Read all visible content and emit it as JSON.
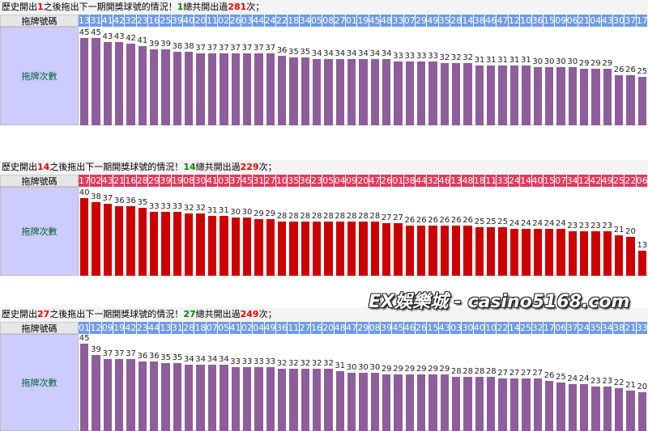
{
  "chart_data": [
    {
      "type": "bar",
      "header": [
        "歷史開出",
        "1",
        "之後拖出下一期開獎球號的情況！",
        "1",
        "總共開出過",
        "281",
        "次；"
      ],
      "row_labels": [
        "拖牌號碼",
        "拖牌次數"
      ],
      "cell_color": "#6f9be8",
      "color": "#8e5e9a",
      "categories": [
        "13",
        "31",
        "41",
        "42",
        "32",
        "23",
        "16",
        "25",
        "39",
        "40",
        "20",
        "11",
        "02",
        "26",
        "03",
        "44",
        "24",
        "22",
        "18",
        "34",
        "05",
        "08",
        "27",
        "01",
        "19",
        "45",
        "48",
        "33",
        "07",
        "29",
        "49",
        "35",
        "28",
        "14",
        "38",
        "46",
        "47",
        "12",
        "10",
        "36",
        "15",
        "09",
        "06",
        "21",
        "04",
        "43",
        "30",
        "37",
        "17"
      ],
      "values": [
        45,
        45,
        43,
        43,
        42,
        41,
        39,
        39,
        38,
        38,
        37,
        37,
        37,
        37,
        37,
        37,
        37,
        36,
        35,
        35,
        34,
        34,
        34,
        34,
        34,
        34,
        34,
        33,
        33,
        33,
        33,
        32,
        32,
        32,
        31,
        31,
        31,
        31,
        31,
        30,
        30,
        30,
        30,
        29,
        29,
        29,
        26,
        26,
        25
      ]
    },
    {
      "type": "bar",
      "header": [
        "歷史開出",
        "14",
        "之後拖出下一期開獎球號的情況！",
        "14",
        "總共開出過",
        "229",
        "次；"
      ],
      "row_labels": [
        "拖牌號碼",
        "拖牌次數"
      ],
      "cell_color": "#e33a5c",
      "color": "#cc0000",
      "categories": [
        "17",
        "02",
        "43",
        "21",
        "16",
        "28",
        "29",
        "39",
        "19",
        "08",
        "30",
        "41",
        "03",
        "37",
        "45",
        "31",
        "27",
        "10",
        "35",
        "36",
        "23",
        "05",
        "04",
        "09",
        "20",
        "47",
        "26",
        "01",
        "38",
        "44",
        "32",
        "46",
        "13",
        "48",
        "18",
        "11",
        "33",
        "24",
        "14",
        "40",
        "15",
        "07",
        "34",
        "12",
        "42",
        "49",
        "25",
        "22",
        "06"
      ],
      "values": [
        40,
        38,
        37,
        36,
        36,
        35,
        33,
        33,
        33,
        32,
        32,
        31,
        31,
        30,
        30,
        29,
        29,
        28,
        28,
        28,
        28,
        28,
        28,
        28,
        28,
        28,
        27,
        27,
        26,
        26,
        26,
        26,
        26,
        26,
        25,
        25,
        25,
        24,
        24,
        24,
        24,
        24,
        23,
        23,
        23,
        23,
        21,
        20,
        13
      ]
    },
    {
      "type": "bar",
      "header": [
        "歷史開出",
        "27",
        "之後拖出下一期開獎球號的情況！",
        "27",
        "總共開出過",
        "249",
        "次；"
      ],
      "row_labels": [
        "拖牌號碼",
        "拖牌次數"
      ],
      "cell_color": "#6f9be8",
      "color": "#8e5e9a",
      "categories": [
        "01",
        "12",
        "09",
        "19",
        "42",
        "23",
        "44",
        "13",
        "31",
        "28",
        "18",
        "07",
        "05",
        "41",
        "02",
        "04",
        "49",
        "36",
        "11",
        "27",
        "16",
        "20",
        "48",
        "47",
        "29",
        "08",
        "39",
        "45",
        "46",
        "26",
        "15",
        "43",
        "03",
        "30",
        "40",
        "10",
        "22",
        "14",
        "25",
        "32",
        "17",
        "06",
        "37",
        "24",
        "35",
        "34",
        "38",
        "21",
        "33"
      ],
      "values": [
        45,
        39,
        37,
        37,
        37,
        36,
        36,
        35,
        35,
        34,
        34,
        34,
        34,
        33,
        33,
        33,
        33,
        32,
        32,
        32,
        32,
        32,
        31,
        30,
        30,
        30,
        29,
        29,
        29,
        29,
        29,
        29,
        28,
        28,
        28,
        28,
        27,
        27,
        27,
        27,
        26,
        25,
        24,
        24,
        23,
        23,
        22,
        21,
        20
      ]
    }
  ],
  "watermark": "EX娛樂城 - casino5168.com"
}
